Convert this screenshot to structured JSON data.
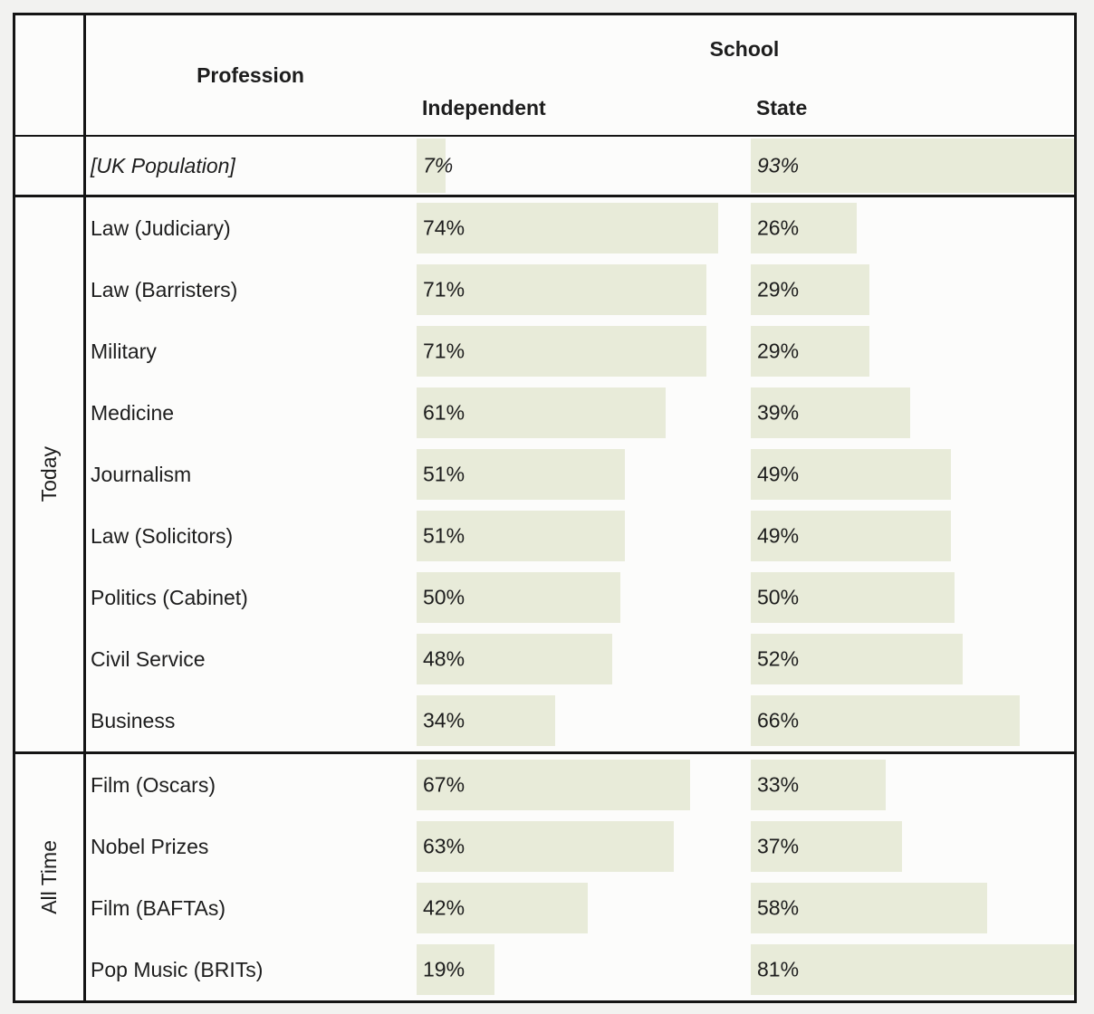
{
  "table": {
    "header": {
      "profession": "Profession",
      "school": "School",
      "independent": "Independent",
      "state": "State"
    },
    "population": {
      "profession": "[UK Population]",
      "independent": 7,
      "state": 93
    },
    "groups": [
      {
        "label": "Today",
        "rows": [
          {
            "profession": "Law (Judiciary)",
            "independent": 74,
            "state": 26
          },
          {
            "profession": "Law (Barristers)",
            "independent": 71,
            "state": 29
          },
          {
            "profession": "Military",
            "independent": 71,
            "state": 29
          },
          {
            "profession": "Medicine",
            "independent": 61,
            "state": 39
          },
          {
            "profession": "Journalism",
            "independent": 51,
            "state": 49
          },
          {
            "profession": "Law (Solicitors)",
            "independent": 51,
            "state": 49
          },
          {
            "profession": "Politics (Cabinet)",
            "independent": 50,
            "state": 50
          },
          {
            "profession": "Civil Service",
            "independent": 48,
            "state": 52
          },
          {
            "profession": "Business",
            "independent": 34,
            "state": 66
          }
        ]
      },
      {
        "label": "All Time",
        "rows": [
          {
            "profession": "Film (Oscars)",
            "independent": 67,
            "state": 33
          },
          {
            "profession": "Nobel Prizes",
            "independent": 63,
            "state": 37
          },
          {
            "profession": "Film (BAFTAs)",
            "independent": 42,
            "state": 58
          },
          {
            "profession": "Pop Music (BRITs)",
            "independent": 19,
            "state": 81
          }
        ]
      }
    ]
  },
  "colors": {
    "bar_fill": "#e8ebd9",
    "border": "#141414",
    "text": "#1d1d1d",
    "table_background": "#fcfcfb",
    "page_background": "#f2f2f0"
  },
  "chart_data": {
    "type": "bar",
    "orientation": "horizontal",
    "value_unit": "%",
    "value_range": [
      0,
      100
    ],
    "column_headers": [
      "Profession",
      "Independent",
      "State"
    ],
    "group_header": "School",
    "categories": [
      "[UK Population]",
      "Law (Judiciary)",
      "Law (Barristers)",
      "Military",
      "Medicine",
      "Journalism",
      "Law (Solicitors)",
      "Politics (Cabinet)",
      "Civil Service",
      "Business",
      "Film (Oscars)",
      "Nobel Prizes",
      "Film (BAFTAs)",
      "Pop Music (BRITs)"
    ],
    "row_groups": {
      "[none]": [
        "[UK Population]"
      ],
      "Today": [
        "Law (Judiciary)",
        "Law (Barristers)",
        "Military",
        "Medicine",
        "Journalism",
        "Law (Solicitors)",
        "Politics (Cabinet)",
        "Civil Service",
        "Business"
      ],
      "All Time": [
        "Film (Oscars)",
        "Nobel Prizes",
        "Film (BAFTAs)",
        "Pop Music (BRITs)"
      ]
    },
    "series": [
      {
        "name": "Independent",
        "values": [
          7,
          74,
          71,
          71,
          61,
          51,
          51,
          50,
          48,
          34,
          67,
          63,
          42,
          19
        ]
      },
      {
        "name": "State",
        "values": [
          93,
          26,
          29,
          29,
          39,
          49,
          49,
          50,
          52,
          66,
          33,
          37,
          58,
          81
        ]
      }
    ],
    "grid": false,
    "legend_position": "column-headers"
  }
}
